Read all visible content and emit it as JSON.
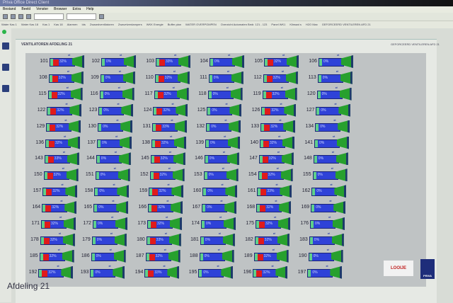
{
  "window": {
    "title": "Priva Office Direct Client"
  },
  "menu": [
    "Bestand",
    "Beeld",
    "Venster",
    "Browser",
    "Extra",
    "Help"
  ],
  "favorites": [
    "Water Kas 1",
    "Water Kas 18",
    "Kas 1",
    "Kas 18",
    "Alarmen",
    "Ids",
    "Zwaardventilatoren",
    "Zwavelverdampers",
    "WKK Energie",
    "Buffer plan",
    "WATER OVERPOMPEN",
    "Overzicht Automaten Bedr. 121 - 123",
    "Panel WK1",
    "Klimaat s",
    "H2O Max",
    "GEFORCEERD VENTILEREN AFD 21"
  ],
  "panel": {
    "title": "VENTILATOREN AFDELING 21",
    "forced_link": "GEFORCEERD VENTILEREN AFD 21",
    "footer": "Afdeling 21"
  },
  "logos": {
    "looije": "LOOIJE",
    "priva": "PRIVA"
  },
  "ventilators": {
    "numbers": [
      [
        101,
        102,
        103,
        104,
        105,
        106
      ],
      [
        108,
        109,
        110,
        111,
        112,
        113
      ],
      [
        115,
        116,
        117,
        118,
        119,
        120
      ],
      [
        122,
        123,
        124,
        125,
        126,
        127
      ],
      [
        129,
        130,
        131,
        132,
        133,
        134
      ],
      [
        136,
        137,
        138,
        139,
        140,
        141
      ],
      [
        143,
        144,
        145,
        146,
        147,
        148
      ],
      [
        150,
        151,
        152,
        153,
        154,
        155
      ],
      [
        157,
        158,
        159,
        160,
        161,
        162
      ],
      [
        164,
        165,
        166,
        167,
        168,
        169
      ],
      [
        171,
        172,
        173,
        174,
        175,
        176
      ],
      [
        178,
        179,
        180,
        181,
        182,
        183
      ],
      [
        185,
        186,
        187,
        188,
        189,
        190
      ],
      [
        192,
        193,
        194,
        195,
        196,
        197
      ]
    ],
    "values": [
      [
        "32%",
        "0%",
        "33%",
        "0%",
        "32%",
        "0%"
      ],
      [
        "32%",
        "0%",
        "32%",
        "0%",
        "32%",
        "0%"
      ],
      [
        "32%",
        "0%",
        "32%",
        "0%",
        "32%",
        "0%"
      ],
      [
        "32%",
        "0%",
        "32%",
        "0%",
        "32%",
        "0%"
      ],
      [
        "32%",
        "0%",
        "33%",
        "0%",
        "32%",
        "0%"
      ],
      [
        "32%",
        "0%",
        "32%",
        "0%",
        "32%",
        "0%"
      ],
      [
        "33%",
        "0%",
        "32%",
        "0%",
        "32%",
        "0%"
      ],
      [
        "32%",
        "0%",
        "32%",
        "0%",
        "32%",
        "0%"
      ],
      [
        "32%",
        "0%",
        "32%",
        "0%",
        "33%",
        "0%"
      ],
      [
        "32%",
        "0%",
        "32%",
        "0%",
        "32%",
        "0%"
      ],
      [
        "32%",
        "0%",
        "32%",
        "0%",
        "32%",
        "0%"
      ],
      [
        "32%",
        "0%",
        "33%",
        "0%",
        "32%",
        "0%"
      ],
      [
        "32%",
        "0%",
        "32%",
        "0%",
        "32%",
        "0%"
      ],
      [
        "32%",
        "0%",
        "33%",
        "0%",
        "32%",
        "0%"
      ]
    ]
  },
  "colors": {
    "running": "#e01b1b",
    "bar": "#2f42d8",
    "fan": "#27a02e"
  }
}
